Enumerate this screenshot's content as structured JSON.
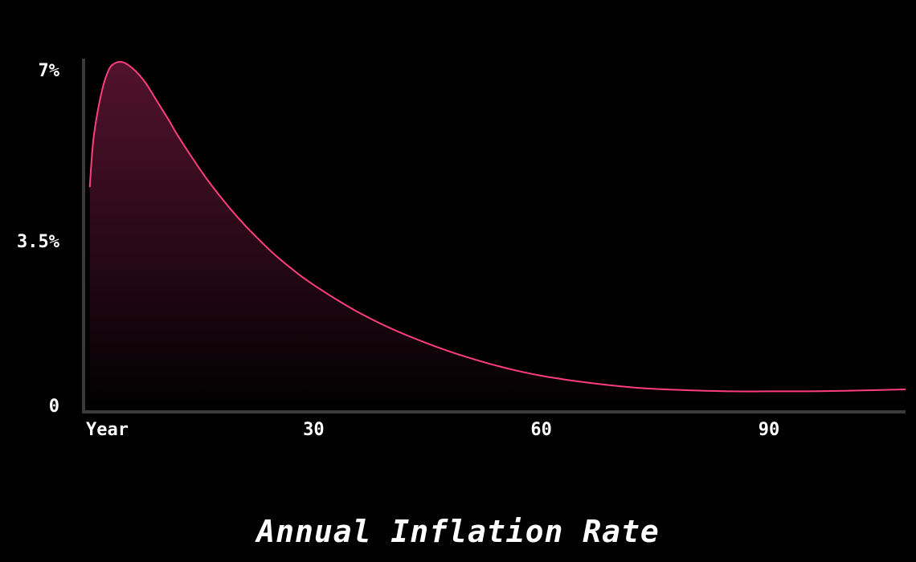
{
  "chart_data": {
    "type": "area",
    "title": "Annual Inflation Rate",
    "xlabel": "",
    "ylabel": "",
    "x_tick_labels": [
      {
        "value": 0,
        "label": "Year"
      },
      {
        "value": 30,
        "label": "30"
      },
      {
        "value": 60,
        "label": "60"
      },
      {
        "value": 90,
        "label": "90"
      }
    ],
    "y_tick_labels": [
      {
        "value": 0,
        "label": "0"
      },
      {
        "value": 3.5,
        "label": "3.5%"
      },
      {
        "value": 7,
        "label": "7%"
      }
    ],
    "xlim": [
      0,
      108
    ],
    "ylim": [
      0,
      7
    ],
    "grid": false,
    "series": [
      {
        "x": [
          0.5,
          1,
          2,
          3,
          4,
          5,
          6,
          7,
          8,
          9,
          10,
          11,
          12,
          14,
          16,
          18,
          20,
          22,
          25,
          28,
          30,
          33,
          36,
          40,
          45,
          50,
          55,
          60,
          65,
          70,
          75,
          80,
          85,
          90,
          95,
          100,
          108
        ],
        "values": [
          4.6,
          5.6,
          6.5,
          7.0,
          7.15,
          7.15,
          7.05,
          6.9,
          6.7,
          6.45,
          6.2,
          5.95,
          5.68,
          5.2,
          4.75,
          4.35,
          3.98,
          3.65,
          3.2,
          2.82,
          2.6,
          2.3,
          2.03,
          1.72,
          1.4,
          1.13,
          0.91,
          0.74,
          0.62,
          0.53,
          0.47,
          0.44,
          0.42,
          0.42,
          0.42,
          0.43,
          0.46
        ]
      }
    ],
    "colors": {
      "line": "#ff3d7f",
      "fill_top": "#5a1430",
      "fill_bottom": "#000000",
      "axis": "#3a3a3a",
      "text": "#ffffff",
      "background": "#000000"
    }
  }
}
